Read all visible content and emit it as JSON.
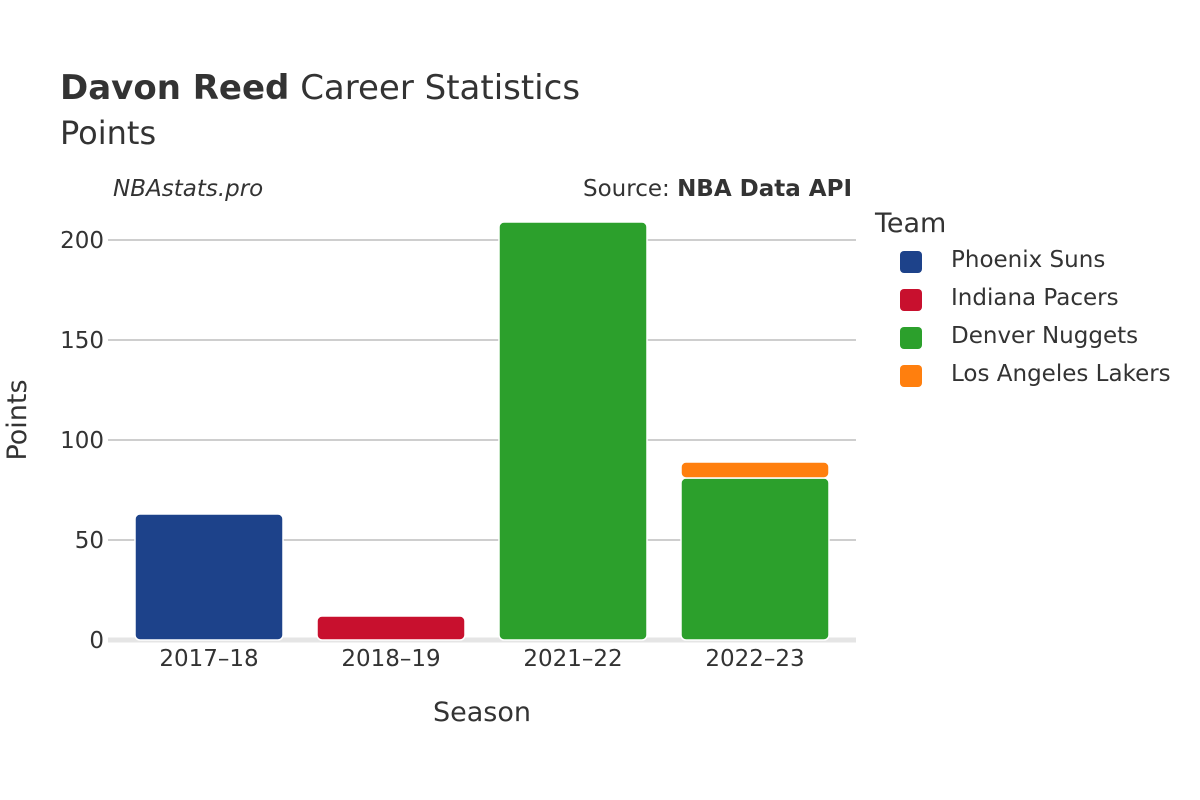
{
  "header": {
    "player_name": "Davon Reed",
    "title_rest": "Career Statistics",
    "subtitle": "Points",
    "credit": "NBAstats.pro",
    "source_prefix": "Source: ",
    "source_name": "NBA Data API"
  },
  "legend": {
    "title": "Team",
    "items": [
      {
        "label": "Phoenix Suns",
        "color": "#1d428a"
      },
      {
        "label": "Indiana Pacers",
        "color": "#c8102e"
      },
      {
        "label": "Denver Nuggets",
        "color": "#2ca02c"
      },
      {
        "label": "Los Angeles Lakers",
        "color": "#ff7f0e"
      }
    ]
  },
  "chart_data": {
    "type": "bar",
    "stacked": true,
    "title": "Davon Reed Career Statistics",
    "subtitle": "Points",
    "xlabel": "Season",
    "ylabel": "Points",
    "categories": [
      "2017–18",
      "2018–19",
      "2021–22",
      "2022–23"
    ],
    "ylim": [
      0,
      215
    ],
    "yticks": [
      0,
      50,
      100,
      150,
      200
    ],
    "grid": true,
    "legend_position": "right",
    "series": [
      {
        "name": "Phoenix Suns",
        "color": "#1d428a",
        "values": [
          63,
          0,
          0,
          0
        ]
      },
      {
        "name": "Indiana Pacers",
        "color": "#c8102e",
        "values": [
          0,
          12,
          0,
          0
        ]
      },
      {
        "name": "Denver Nuggets",
        "color": "#2ca02c",
        "values": [
          0,
          0,
          209,
          81
        ]
      },
      {
        "name": "Los Angeles Lakers",
        "color": "#ff7f0e",
        "values": [
          0,
          0,
          0,
          8
        ]
      }
    ]
  }
}
